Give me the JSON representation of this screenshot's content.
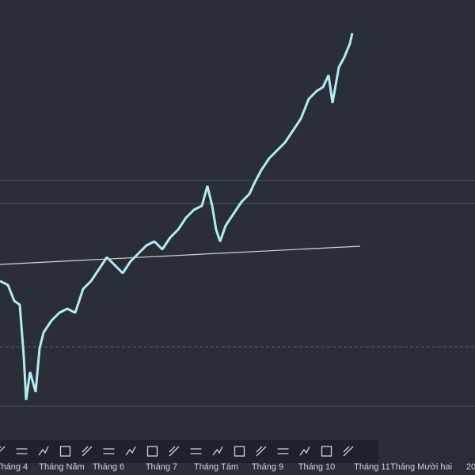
{
  "time_axis": {
    "labels": [
      "Tháng 4",
      "Tháng Năm",
      "Tháng 6",
      "Tháng 7",
      "Tháng Tám",
      "Tháng 9",
      "Tháng 10",
      "Tháng 11",
      "Tháng Mười hai",
      "20"
    ]
  }
}
